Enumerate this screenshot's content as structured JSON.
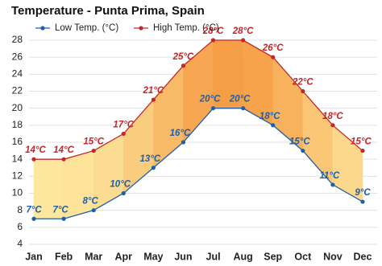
{
  "chart_data": {
    "type": "line",
    "title": "Temperature - Punta Prima, Spain",
    "categories": [
      "Jan",
      "Feb",
      "Mar",
      "Apr",
      "May",
      "Jun",
      "Jul",
      "Aug",
      "Sep",
      "Oct",
      "Nov",
      "Dec"
    ],
    "series": [
      {
        "name": "Low Temp. (°C)",
        "color": "#1f5fa8",
        "values": [
          7,
          7,
          8,
          10,
          13,
          16,
          20,
          20,
          18,
          15,
          11,
          9
        ],
        "value_labels": [
          "7°C",
          "7°C",
          "8°C",
          "10°C",
          "13°C",
          "16°C",
          "20°C",
          "20°C",
          "18°C",
          "15°C",
          "11°C",
          "9°C"
        ]
      },
      {
        "name": "High Temp. (°C)",
        "color": "#c0282b",
        "values": [
          14,
          14,
          15,
          17,
          21,
          25,
          28,
          28,
          26,
          22,
          18,
          15
        ],
        "value_labels": [
          "14°C",
          "14°C",
          "15°C",
          "17°C",
          "21°C",
          "25°C",
          "28°C",
          "28°C",
          "26°C",
          "22°C",
          "18°C",
          "15°C"
        ]
      }
    ],
    "ylim": [
      4,
      28
    ],
    "yticks": [
      4,
      6,
      8,
      10,
      12,
      14,
      16,
      18,
      20,
      22,
      24,
      26,
      28
    ],
    "grid": true,
    "fill_between": true
  }
}
